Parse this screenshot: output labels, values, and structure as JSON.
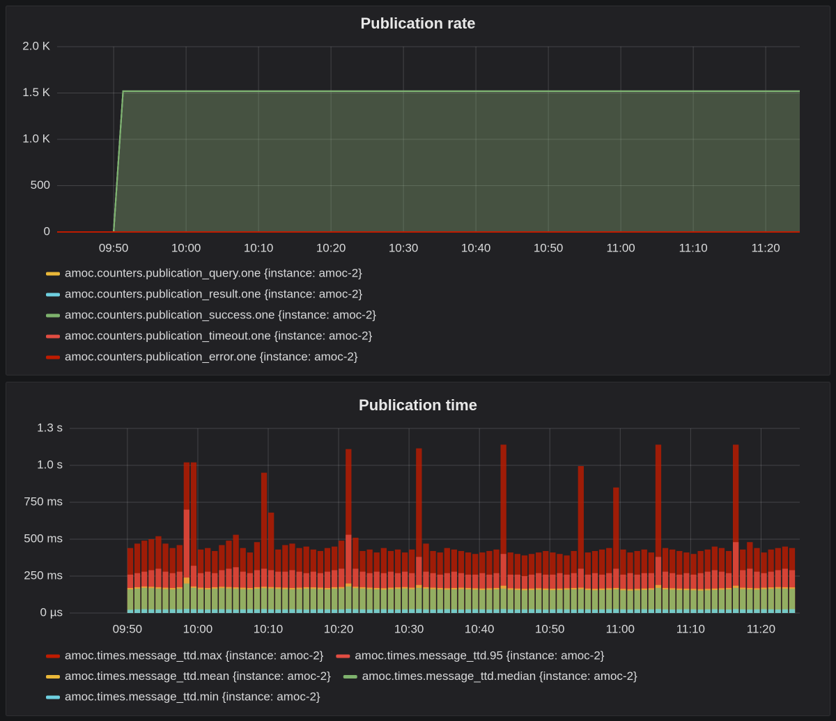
{
  "chart_data": [
    {
      "type": "line",
      "title": "Publication rate",
      "x": [
        582.2,
        590,
        591.3,
        684.7
      ],
      "xlim": [
        582.2,
        684.7
      ],
      "xticks": [
        {
          "value": 590,
          "label": "09:50"
        },
        {
          "value": 600,
          "label": "10:00"
        },
        {
          "value": 610,
          "label": "10:10"
        },
        {
          "value": 620,
          "label": "10:20"
        },
        {
          "value": 630,
          "label": "10:30"
        },
        {
          "value": 640,
          "label": "10:40"
        },
        {
          "value": 650,
          "label": "10:50"
        },
        {
          "value": 660,
          "label": "11:00"
        },
        {
          "value": 670,
          "label": "11:10"
        },
        {
          "value": 680,
          "label": "11:20"
        }
      ],
      "ylim": [
        0,
        2000
      ],
      "yticks": [
        0,
        500,
        {
          "value": 1000,
          "label": "1.0 K"
        },
        {
          "value": 1500,
          "label": "1.5 K"
        },
        {
          "value": 2000,
          "label": "2.0 K"
        }
      ],
      "grid": true,
      "fill_opacity": 0.12,
      "series": [
        {
          "name": "amoc.counters.publication_query.one {instance: amoc-2}",
          "color": "#eab839",
          "values": [
            0,
            0,
            1520,
            1520
          ]
        },
        {
          "name": "amoc.counters.publication_result.one {instance: amoc-2}",
          "color": "#6ed0e0",
          "values": [
            0,
            0,
            1520,
            1520
          ]
        },
        {
          "name": "amoc.counters.publication_success.one {instance: amoc-2}",
          "color": "#7eb26d",
          "values": [
            0,
            0,
            1520,
            1520
          ]
        },
        {
          "name": "amoc.counters.publication_timeout.one {instance: amoc-2}",
          "color": "#e24d42",
          "values": [
            0,
            0,
            0,
            0
          ]
        },
        {
          "name": "amoc.counters.publication_error.one {instance: amoc-2}",
          "color": "#bf1b00",
          "values": [
            0,
            0,
            0,
            0
          ]
        }
      ]
    },
    {
      "type": "bar",
      "title": "Publication time",
      "x": [
        590,
        591,
        592,
        593,
        594,
        595,
        596,
        597,
        598,
        599,
        600,
        601,
        602,
        603,
        604,
        605,
        606,
        607,
        608,
        609,
        610,
        611,
        612,
        613,
        614,
        615,
        616,
        617,
        618,
        619,
        620,
        621,
        622,
        623,
        624,
        625,
        626,
        627,
        628,
        629,
        630,
        631,
        632,
        633,
        634,
        635,
        636,
        637,
        638,
        639,
        640,
        641,
        642,
        643,
        644,
        645,
        646,
        647,
        648,
        649,
        650,
        651,
        652,
        653,
        654,
        655,
        656,
        657,
        658,
        659,
        660,
        661,
        662,
        663,
        664,
        665,
        666,
        667,
        668,
        669,
        670,
        671,
        672,
        673,
        674,
        675,
        676,
        677,
        678,
        679,
        680,
        681,
        682,
        683,
        684
      ],
      "xlim": [
        581.8,
        685.5
      ],
      "xticks": [
        {
          "value": 590,
          "label": "09:50"
        },
        {
          "value": 600,
          "label": "10:00"
        },
        {
          "value": 610,
          "label": "10:10"
        },
        {
          "value": 620,
          "label": "10:20"
        },
        {
          "value": 630,
          "label": "10:30"
        },
        {
          "value": 640,
          "label": "10:40"
        },
        {
          "value": 650,
          "label": "10:50"
        },
        {
          "value": 660,
          "label": "11:00"
        },
        {
          "value": 670,
          "label": "11:10"
        },
        {
          "value": 680,
          "label": "11:20"
        }
      ],
      "ylim": [
        0,
        1250
      ],
      "yticks": [
        {
          "value": 0,
          "label": "0 µs"
        },
        {
          "value": 250,
          "label": "250 ms"
        },
        {
          "value": 500,
          "label": "500 ms"
        },
        {
          "value": 750,
          "label": "750 ms"
        },
        {
          "value": 1000,
          "label": "1.0 s"
        },
        {
          "value": 1250,
          "label": "1.3 s"
        }
      ],
      "grid": true,
      "series": [
        {
          "name": "amoc.times.message_ttd.max {instance: amoc-2}",
          "color": "#bf1b00",
          "values": [
            440,
            470,
            490,
            500,
            520,
            470,
            440,
            460,
            1020,
            1020,
            430,
            440,
            420,
            460,
            490,
            530,
            440,
            410,
            480,
            950,
            680,
            430,
            460,
            470,
            440,
            450,
            430,
            420,
            440,
            450,
            490,
            1110,
            510,
            420,
            430,
            410,
            440,
            420,
            430,
            410,
            430,
            1115,
            470,
            420,
            410,
            440,
            430,
            420,
            410,
            400,
            410,
            420,
            430,
            1140,
            410,
            400,
            390,
            400,
            410,
            420,
            410,
            400,
            390,
            420,
            995,
            410,
            420,
            430,
            440,
            850,
            430,
            410,
            420,
            430,
            410,
            1140,
            440,
            430,
            420,
            410,
            400,
            420,
            430,
            450,
            440,
            420,
            1140,
            430,
            480,
            440,
            410,
            430,
            440,
            450,
            440
          ]
        },
        {
          "name": "amoc.times.message_ttd.95 {instance: amoc-2}",
          "color": "#e24d42",
          "values": [
            260,
            270,
            280,
            290,
            300,
            280,
            270,
            280,
            700,
            320,
            270,
            280,
            270,
            290,
            300,
            310,
            280,
            270,
            290,
            300,
            290,
            280,
            280,
            290,
            280,
            270,
            280,
            270,
            280,
            290,
            300,
            530,
            300,
            280,
            270,
            280,
            270,
            280,
            270,
            280,
            270,
            380,
            280,
            270,
            260,
            270,
            280,
            270,
            260,
            260,
            270,
            260,
            270,
            400,
            260,
            260,
            250,
            260,
            270,
            260,
            260,
            270,
            260,
            270,
            300,
            260,
            270,
            260,
            270,
            300,
            260,
            270,
            260,
            270,
            270,
            380,
            280,
            270,
            260,
            270,
            260,
            270,
            280,
            290,
            280,
            270,
            480,
            290,
            300,
            280,
            270,
            280,
            290,
            300,
            290
          ]
        },
        {
          "name": "amoc.times.message_ttd.mean {instance: amoc-2}",
          "color": "#eab839",
          "values": [
            170,
            175,
            180,
            178,
            175,
            172,
            170,
            175,
            240,
            180,
            172,
            170,
            175,
            178,
            176,
            174,
            172,
            170,
            175,
            178,
            176,
            174,
            172,
            170,
            172,
            175,
            174,
            172,
            170,
            175,
            176,
            200,
            178,
            175,
            172,
            170,
            168,
            172,
            174,
            176,
            172,
            190,
            175,
            172,
            170,
            168,
            170,
            172,
            170,
            168,
            166,
            168,
            170,
            185,
            168,
            166,
            164,
            166,
            168,
            166,
            165,
            166,
            168,
            170,
            172,
            166,
            164,
            166,
            168,
            170,
            164,
            162,
            164,
            166,
            168,
            190,
            170,
            168,
            166,
            165,
            164,
            162,
            164,
            166,
            168,
            170,
            185,
            172,
            170,
            168,
            172,
            174,
            176,
            175,
            174
          ]
        },
        {
          "name": "amoc.times.message_ttd.median {instance: amoc-2}",
          "color": "#7eb26d",
          "values": [
            160,
            165,
            170,
            168,
            165,
            162,
            160,
            165,
            200,
            170,
            162,
            160,
            165,
            168,
            166,
            164,
            162,
            160,
            165,
            168,
            166,
            164,
            162,
            160,
            162,
            165,
            164,
            162,
            160,
            165,
            166,
            180,
            168,
            165,
            162,
            160,
            158,
            162,
            164,
            166,
            162,
            170,
            165,
            162,
            160,
            158,
            160,
            162,
            160,
            158,
            156,
            158,
            160,
            165,
            158,
            156,
            154,
            156,
            158,
            156,
            155,
            156,
            158,
            160,
            162,
            156,
            154,
            156,
            158,
            160,
            154,
            152,
            154,
            156,
            158,
            170,
            160,
            158,
            156,
            155,
            154,
            152,
            154,
            156,
            158,
            160,
            170,
            162,
            160,
            158,
            162,
            164,
            166,
            165,
            164
          ]
        },
        {
          "name": "amoc.times.message_ttd.min {instance: amoc-2}",
          "color": "#6ed0e0",
          "values": [
            22,
            25,
            26,
            25,
            24,
            25,
            26,
            25,
            28,
            26,
            25,
            24,
            25,
            26,
            25,
            24,
            25,
            26,
            25,
            27,
            25,
            24,
            25,
            26,
            25,
            24,
            25,
            26,
            25,
            24,
            25,
            28,
            26,
            25,
            24,
            25,
            26,
            25,
            24,
            25,
            26,
            27,
            25,
            24,
            25,
            26,
            25,
            24,
            25,
            26,
            25,
            24,
            25,
            27,
            25,
            24,
            25,
            26,
            25,
            24,
            25,
            26,
            25,
            24,
            26,
            25,
            24,
            25,
            26,
            27,
            25,
            24,
            25,
            26,
            25,
            27,
            25,
            24,
            25,
            26,
            25,
            24,
            25,
            26,
            25,
            24,
            27,
            25,
            24,
            25,
            26,
            25,
            24,
            25,
            26
          ]
        }
      ]
    }
  ]
}
